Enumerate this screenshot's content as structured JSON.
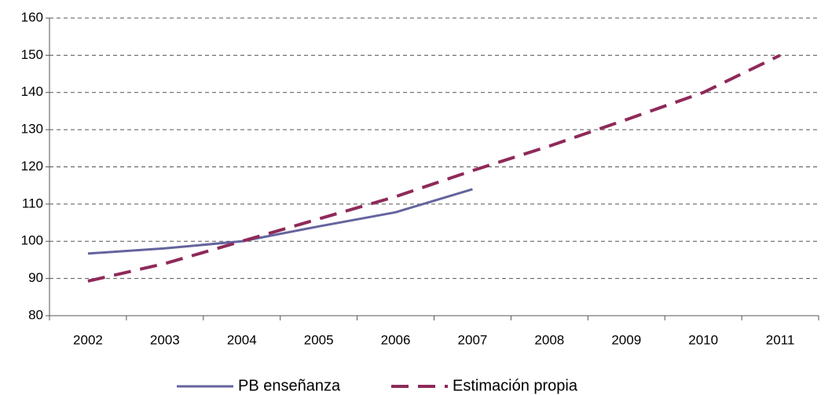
{
  "chart_data": {
    "type": "line",
    "categories": [
      "2002",
      "2003",
      "2004",
      "2005",
      "2006",
      "2007",
      "2008",
      "2009",
      "2010",
      "2011"
    ],
    "series": [
      {
        "name": "PB enseñanza",
        "color": "#64649e",
        "dash": false,
        "values": [
          96.7,
          98.1,
          100,
          104,
          107.8,
          114,
          null,
          null,
          null,
          null
        ]
      },
      {
        "name": "Estimación propia",
        "color": "#8e2a59",
        "dash": true,
        "values": [
          89.3,
          94,
          100,
          106,
          112,
          119,
          125.6,
          132.7,
          140,
          150
        ]
      }
    ],
    "ylim": [
      80,
      160
    ],
    "yticks": [
      80,
      90,
      100,
      110,
      120,
      130,
      140,
      150,
      160
    ],
    "grid": true,
    "legend": "bottom"
  }
}
